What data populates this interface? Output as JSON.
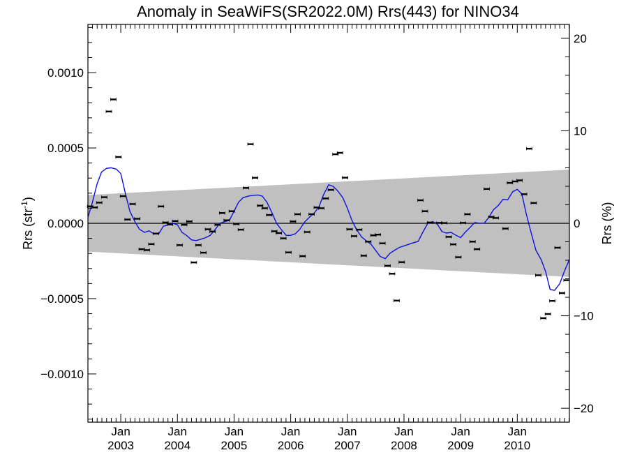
{
  "chart_data": {
    "type": "scatter",
    "title": "Anomaly in SeaWiFS(SR2022.0M) Rrs(443) for NINO34",
    "ylabel_left": "Rrs (str",
    "ylabel_left_sup": "-1",
    "ylabel_left_close": ")",
    "ylabel_right": "Rrs (%)",
    "xlim": [
      2002.42,
      2010.92
    ],
    "ylim": [
      -0.00132,
      0.00132
    ],
    "y2lim": [
      -21.5,
      21.5
    ],
    "left_ticks": [
      {
        "v": 0.001,
        "label": "0.0010"
      },
      {
        "v": 0.0005,
        "label": "0.0005"
      },
      {
        "v": 0.0,
        "label": "0.0000"
      },
      {
        "v": -0.0005,
        "label": "−0.0005"
      },
      {
        "v": -0.001,
        "label": "−0.0010"
      }
    ],
    "right_ticks": [
      {
        "v": 20,
        "label": "20"
      },
      {
        "v": 10,
        "label": "10"
      },
      {
        "v": 0,
        "label": "0"
      },
      {
        "v": -10,
        "label": "−10"
      },
      {
        "v": -20,
        "label": "−20"
      }
    ],
    "x_ticks": [
      {
        "v": 2003.0,
        "month": "Jan",
        "year": "2003"
      },
      {
        "v": 2004.0,
        "month": "Jan",
        "year": "2004"
      },
      {
        "v": 2005.0,
        "month": "Jan",
        "year": "2005"
      },
      {
        "v": 2006.0,
        "month": "Jan",
        "year": "2006"
      },
      {
        "v": 2007.0,
        "month": "Jan",
        "year": "2007"
      },
      {
        "v": 2008.0,
        "month": "Jan",
        "year": "2008"
      },
      {
        "v": 2009.0,
        "month": "Jan",
        "year": "2009"
      },
      {
        "v": 2010.0,
        "month": "Jan",
        "year": "2010"
      }
    ],
    "band": {
      "start": [
        2002.42,
        0.000188,
        -0.000188
      ],
      "end": [
        2010.92,
        0.000356,
        -0.000356
      ],
      "color": "#c0c0c0"
    },
    "zero_line": 0.0,
    "points": [
      [
        2002.46,
        0.000112
      ],
      [
        2002.54,
        0.000105
      ],
      [
        2002.62,
        0.000137
      ],
      [
        2002.71,
        0.000173
      ],
      [
        2002.79,
        0.000742
      ],
      [
        2002.87,
        0.000822
      ],
      [
        2002.96,
        0.00044
      ],
      [
        2003.04,
        0.00018
      ],
      [
        2003.12,
        2.5e-05
      ],
      [
        2003.21,
        0.000128
      ],
      [
        2003.29,
        3e-05
      ],
      [
        2003.37,
        -0.000172
      ],
      [
        2003.46,
        -0.000178
      ],
      [
        2003.54,
        -0.000138
      ],
      [
        2003.62,
        -6.8e-05
      ],
      [
        2003.71,
        0.000112
      ],
      [
        2003.79,
        5e-06
      ],
      [
        2003.87,
        -8e-06
      ],
      [
        2003.96,
        1.5e-05
      ],
      [
        2004.04,
        -0.000145
      ],
      [
        2004.12,
        -1e-05
      ],
      [
        2004.21,
        1.2e-05
      ],
      [
        2004.29,
        -0.00026
      ],
      [
        2004.37,
        -0.000145
      ],
      [
        2004.46,
        -0.000195
      ],
      [
        2004.54,
        -4e-05
      ],
      [
        2004.62,
        -5.5e-05
      ],
      [
        2004.71,
        -1e-05
      ],
      [
        2004.79,
        6.8e-05
      ],
      [
        2004.87,
        2e-05
      ],
      [
        2004.96,
        8e-05
      ],
      [
        2005.04,
        -5e-06
      ],
      [
        2005.12,
        -4.2e-05
      ],
      [
        2005.21,
        0.000235
      ],
      [
        2005.29,
        0.000525
      ],
      [
        2005.37,
        0.000302
      ],
      [
        2005.46,
        0.000117
      ],
      [
        2005.54,
        0.0001
      ],
      [
        2005.62,
        5.5e-05
      ],
      [
        2005.71,
        -5.3e-05
      ],
      [
        2005.79,
        -6.5e-05
      ],
      [
        2005.87,
        -0.0001
      ],
      [
        2005.96,
        -0.000193
      ],
      [
        2006.04,
        1.2e-05
      ],
      [
        2006.12,
        6e-05
      ],
      [
        2006.21,
        -0.000218
      ],
      [
        2006.29,
        -5.8e-05
      ],
      [
        2006.37,
        6e-05
      ],
      [
        2006.46,
        0.000105
      ],
      [
        2006.54,
        0.0001
      ],
      [
        2006.62,
        0.000165
      ],
      [
        2006.71,
        0.000222
      ],
      [
        2006.79,
        0.000458
      ],
      [
        2006.87,
        0.000468
      ],
      [
        2006.96,
        0.000303
      ],
      [
        2007.04,
        -4e-05
      ],
      [
        2007.12,
        -8.5e-05
      ],
      [
        2007.21,
        -4.2e-05
      ],
      [
        2007.29,
        -0.000215
      ],
      [
        2007.37,
        -0.000122
      ],
      [
        2007.46,
        -8e-05
      ],
      [
        2007.54,
        -7.5e-05
      ],
      [
        2007.62,
        -0.000133
      ],
      [
        2007.71,
        -0.000282
      ],
      [
        2007.79,
        -0.000335
      ],
      [
        2007.87,
        -0.000513
      ],
      [
        2007.96,
        -0.000258
      ],
      [
        2008.29,
        0.000153
      ],
      [
        2008.37,
        8e-05
      ],
      [
        2008.46,
        5e-06
      ],
      [
        2008.62,
        3e-06
      ],
      [
        2008.71,
        2e-06
      ],
      [
        2008.79,
        -9e-05
      ],
      [
        2008.87,
        -0.00014
      ],
      [
        2008.96,
        -0.000225
      ],
      [
        2009.04,
        3e-06
      ],
      [
        2009.12,
        6e-05
      ],
      [
        2009.21,
        -0.000122
      ],
      [
        2009.29,
        -0.000172
      ],
      [
        2009.46,
        0.000228
      ],
      [
        2009.54,
        4.2e-05
      ],
      [
        2009.62,
        3.5e-05
      ],
      [
        2009.79,
        -3.5e-05
      ],
      [
        2009.87,
        0.000268
      ],
      [
        2009.96,
        0.000278
      ],
      [
        2010.04,
        0.000285
      ],
      [
        2010.12,
        0.000193
      ],
      [
        2010.21,
        0.000495
      ],
      [
        2010.29,
        0.000135
      ],
      [
        2010.37,
        -0.000345
      ],
      [
        2010.46,
        -0.00063
      ],
      [
        2010.54,
        -0.000602
      ],
      [
        2010.62,
        -0.000515
      ],
      [
        2010.71,
        -0.000162
      ],
      [
        2010.79,
        -0.000463
      ],
      [
        2010.87,
        -0.000378
      ]
    ],
    "smooth_line": {
      "color": "#1010dd",
      "points": [
        [
          2002.42,
          4e-05
        ],
        [
          2002.5,
          0.00014
        ],
        [
          2002.58,
          0.00026
        ],
        [
          2002.66,
          0.00034
        ],
        [
          2002.75,
          0.000365
        ],
        [
          2002.83,
          0.000368
        ],
        [
          2002.92,
          0.00036
        ],
        [
          2003.0,
          0.00033
        ],
        [
          2003.08,
          0.0002
        ],
        [
          2003.16,
          8e-05
        ],
        [
          2003.25,
          1e-05
        ],
        [
          2003.33,
          -4e-05
        ],
        [
          2003.42,
          -6e-05
        ],
        [
          2003.5,
          -5e-05
        ],
        [
          2003.58,
          -7e-05
        ],
        [
          2003.67,
          -7e-05
        ],
        [
          2003.75,
          -2e-05
        ],
        [
          2003.83,
          -1e-05
        ],
        [
          2003.92,
          0.0
        ],
        [
          2004.0,
          -1e-05
        ],
        [
          2004.08,
          -6e-05
        ],
        [
          2004.16,
          -8e-05
        ],
        [
          2004.25,
          -0.00011
        ],
        [
          2004.33,
          -0.000115
        ],
        [
          2004.42,
          -0.000105
        ],
        [
          2004.5,
          -9.5e-05
        ],
        [
          2004.58,
          -8e-05
        ],
        [
          2004.67,
          -4e-05
        ],
        [
          2004.75,
          0.0
        ],
        [
          2004.83,
          1e-05
        ],
        [
          2004.92,
          2e-05
        ],
        [
          2005.0,
          8e-05
        ],
        [
          2005.08,
          0.00014
        ],
        [
          2005.16,
          0.00017
        ],
        [
          2005.25,
          0.00018
        ],
        [
          2005.33,
          0.000185
        ],
        [
          2005.42,
          0.000188
        ],
        [
          2005.5,
          0.00018
        ],
        [
          2005.58,
          0.00014
        ],
        [
          2005.67,
          7e-05
        ],
        [
          2005.75,
          0.0
        ],
        [
          2005.83,
          -4e-05
        ],
        [
          2005.92,
          -8e-05
        ],
        [
          2006.0,
          -8e-05
        ],
        [
          2006.08,
          -7e-05
        ],
        [
          2006.16,
          -4e-05
        ],
        [
          2006.25,
          1e-05
        ],
        [
          2006.33,
          4e-05
        ],
        [
          2006.42,
          7e-05
        ],
        [
          2006.5,
          0.00011
        ],
        [
          2006.58,
          0.00019
        ],
        [
          2006.67,
          0.000255
        ],
        [
          2006.75,
          0.000245
        ],
        [
          2006.83,
          0.000215
        ],
        [
          2006.92,
          0.00017
        ],
        [
          2007.0,
          0.0001
        ],
        [
          2007.08,
          2e-05
        ],
        [
          2007.16,
          -4e-05
        ],
        [
          2007.25,
          -9e-05
        ],
        [
          2007.33,
          -0.000115
        ],
        [
          2007.42,
          -0.00014
        ],
        [
          2007.5,
          -0.00018
        ],
        [
          2007.58,
          -0.00022
        ],
        [
          2007.67,
          -0.000235
        ],
        [
          2007.75,
          -0.0002
        ],
        [
          2007.83,
          -0.00018
        ],
        [
          2007.92,
          -0.00016
        ],
        [
          2008.0,
          -0.00015
        ],
        [
          2008.08,
          -0.00014
        ],
        [
          2008.16,
          -0.00013
        ],
        [
          2008.25,
          -0.00012
        ],
        [
          2008.33,
          -6e-05
        ],
        [
          2008.42,
          0.0
        ],
        [
          2008.5,
          1e-05
        ],
        [
          2008.58,
          0.0
        ],
        [
          2008.67,
          -5.5e-05
        ],
        [
          2008.75,
          -6.5e-05
        ],
        [
          2008.83,
          -6e-05
        ],
        [
          2008.92,
          -8e-05
        ],
        [
          2009.0,
          -9.5e-05
        ],
        [
          2009.08,
          -6e-05
        ],
        [
          2009.16,
          -3e-05
        ],
        [
          2009.25,
          5e-06
        ],
        [
          2009.33,
          0.0
        ],
        [
          2009.42,
          2e-06
        ],
        [
          2009.5,
          4e-05
        ],
        [
          2009.58,
          9e-05
        ],
        [
          2009.67,
          0.00012
        ],
        [
          2009.75,
          0.00016
        ],
        [
          2009.83,
          0.000155
        ],
        [
          2009.92,
          0.00021
        ],
        [
          2010.0,
          0.000225
        ],
        [
          2010.08,
          0.000195
        ],
        [
          2010.16,
          6e-05
        ],
        [
          2010.25,
          -7e-05
        ],
        [
          2010.33,
          -0.00018
        ],
        [
          2010.42,
          -0.00024
        ],
        [
          2010.5,
          -0.00032
        ],
        [
          2010.58,
          -0.00044
        ],
        [
          2010.66,
          -0.000445
        ],
        [
          2010.75,
          -0.0004
        ],
        [
          2010.83,
          -0.00032
        ],
        [
          2010.92,
          -0.00024
        ]
      ]
    },
    "grid": false,
    "legend": "none"
  }
}
